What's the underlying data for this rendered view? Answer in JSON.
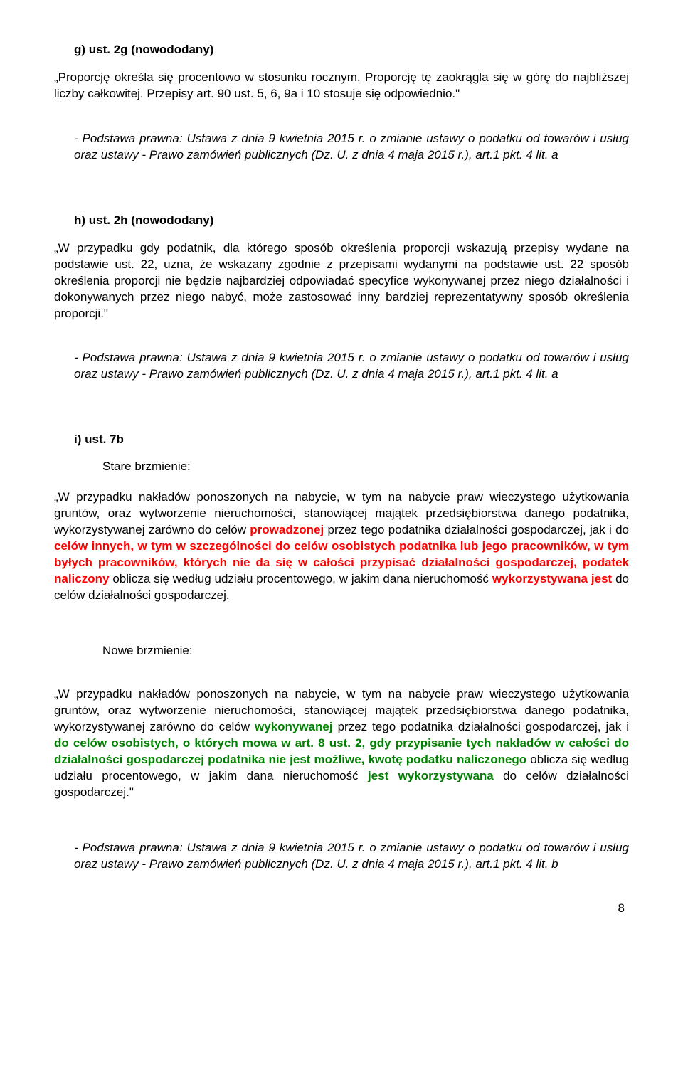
{
  "colors": {
    "text": "#000000",
    "background": "#ffffff",
    "removed": "#ff0000",
    "added": "#008000"
  },
  "typography": {
    "base_font_family": "Arial",
    "base_font_size_pt": 13,
    "heading_weight": "bold",
    "line_height": 1.35,
    "body_align": "justify"
  },
  "page_number": "8",
  "sections": {
    "g": {
      "heading": "g) ust. 2g (nowododany)",
      "body": "„Proporcję określa się procentowo w stosunku rocznym. Proporcję tę zaokrągla się w górę do najbliższej liczby całkowitej. Przepisy art. 90 ust. 5, 6, 9a i 10 stosuje się odpowiednio.\"",
      "legal_basis": "- Podstawa prawna: Ustawa z dnia 9 kwietnia 2015 r. o zmianie ustawy o podatku od towarów i usług oraz ustawy - Prawo zamówień publicznych (Dz. U. z dnia 4 maja 2015 r.), art.1  pkt. 4 lit. a"
    },
    "h": {
      "heading": "h) ust. 2h (nowododany)",
      "body": "„W przypadku gdy podatnik, dla którego sposób określenia proporcji wskazują przepisy wydane na podstawie ust. 22, uzna, że wskazany zgodnie z przepisami wydanymi na podstawie ust. 22 sposób określenia proporcji nie będzie najbardziej odpowiadać specyfice wykonywanej przez niego działalności i dokonywanych przez niego nabyć, może zastosować inny bardziej reprezentatywny sposób określenia proporcji.\"",
      "legal_basis": "- Podstawa prawna: Ustawa z dnia 9 kwietnia 2015 r. o zmianie ustawy o podatku od towarów i usług oraz ustawy - Prawo zamówień publicznych (Dz. U. z dnia 4 maja 2015 r.), art.1  pkt. 4 lit. a"
    },
    "i": {
      "heading": "i)  ust. 7b",
      "old_label": "Stare brzmienie:",
      "old_text": {
        "prefix": "„W przypadku nakładów ponoszonych na nabycie, w tym na nabycie praw wieczystego użytkowania gruntów, oraz wytworzenie nieruchomości, stanowiącej majątek przedsiębiorstwa danego podatnika, wykorzystywanej zarówno do celów ",
        "r1": "prowadzonej",
        "m1": " przez tego podatnika działalności gospodarczej, jak i do ",
        "r2": "celów innych, w tym w szczególności do celów osobistych podatnika lub jego pracowników, w tym byłych pracowników, których nie da się w całości przypisać działalności gospodarczej, podatek naliczony",
        "m2": " oblicza się według udziału procentowego, w jakim dana nieruchomość ",
        "r3": "wykorzystywana jest",
        "suffix": " do celów działalności gospodarczej."
      },
      "new_label": "Nowe brzmienie:",
      "new_text": {
        "prefix": "„W przypadku nakładów ponoszonych na nabycie, w tym na nabycie praw wieczystego użytkowania gruntów, oraz wytworzenie nieruchomości, stanowiącej majątek przedsiębiorstwa danego podatnika, wykorzystywanej zarówno do celów ",
        "g1": "wykonywanej",
        "m1": " przez tego podatnika działalności gospodarczej, jak i ",
        "g2": "do celów osobistych, o których mowa w art. 8 ust. 2, gdy przypisanie tych nakładów w całości do działalności gospodarczej podatnika nie jest możliwe, kwotę podatku naliczonego",
        "m2": " oblicza się według udziału procentowego, w jakim dana nieruchomość ",
        "g3": "jest wykorzystywana",
        "suffix": " do celów działalności gospodarczej.\""
      },
      "legal_basis": "- Podstawa prawna: Ustawa z dnia 9 kwietnia 2015 r. o zmianie ustawy o podatku od towarów i usług oraz ustawy - Prawo zamówień publicznych (Dz. U. z dnia 4 maja 2015 r.), art.1  pkt. 4 lit. b"
    }
  }
}
